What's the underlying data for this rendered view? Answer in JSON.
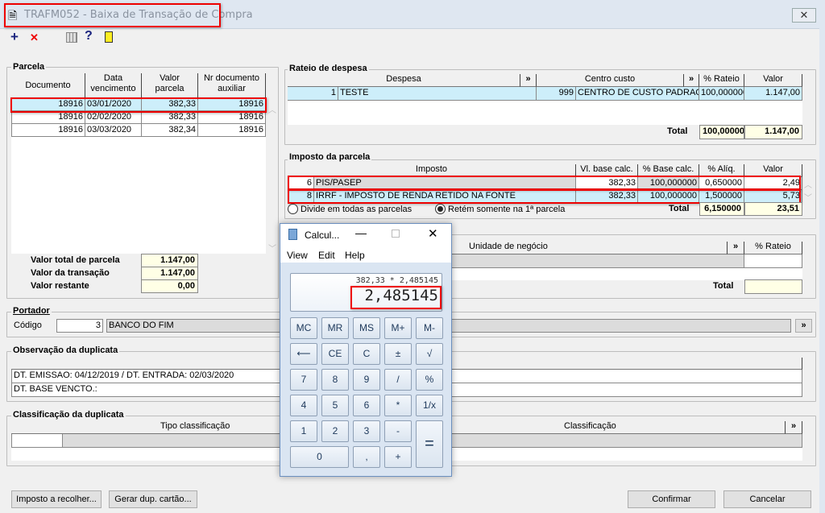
{
  "window": {
    "title": "TRAFM052 - Baixa de Transação de Compra",
    "close": "✕"
  },
  "toolbar": {
    "add": "+",
    "delete": "✕",
    "help": "?"
  },
  "parcela": {
    "label": "Parcela",
    "headers": [
      "Documento",
      "Data\nvencimento",
      "Valor\nparcela",
      "Nr documento\nauxiliar"
    ],
    "rows": [
      [
        "18916",
        "03/01/2020",
        "382,33",
        "18916"
      ],
      [
        "18916",
        "02/02/2020",
        "382,33",
        "18916"
      ],
      [
        "18916",
        "03/03/2020",
        "382,34",
        "18916"
      ]
    ],
    "totals": [
      {
        "label": "Valor total de parcela",
        "value": "1.147,00"
      },
      {
        "label": "Valor da transação",
        "value": "1.147,00"
      },
      {
        "label": "Valor restante",
        "value": "0,00"
      }
    ]
  },
  "rateio": {
    "label": "Rateio de despesa",
    "headers": [
      "Despesa",
      "»",
      "Centro custo",
      "»",
      "% Rateio",
      "Valor"
    ],
    "row": {
      "num": "1",
      "despesa": "TESTE",
      "cc_num": "999",
      "cc": "CENTRO DE CUSTO PADRAO",
      "rateio": "100,000000",
      "valor": "1.147,00"
    },
    "total_label": "Total",
    "total_rateio": "100,000000",
    "total_valor": "1.147,00"
  },
  "imposto": {
    "label": "Imposto da parcela",
    "headers": [
      "Imposto",
      "Vl. base calc.",
      "% Base calc.",
      "% Alíq.",
      "Valor"
    ],
    "rows": [
      {
        "num": "6",
        "name": "PIS/PASEP",
        "base": "382,33",
        "pbase": "100,000000",
        "aliq": "0,650000",
        "valor": "2,49"
      },
      {
        "num": "8",
        "name": "IRRF - IMPOSTO DE RENDA RETIDO NA FONTE",
        "base": "382,33",
        "pbase": "100,000000",
        "aliq": "1,500000",
        "valor": "5,73"
      }
    ],
    "radio1": "Divide em todas as parcelas",
    "radio2": "Retém somente na 1ª parcela",
    "radio_selected": "Retém somente na 1ª parcela",
    "total_label": "Total",
    "total_aliq": "6,150000",
    "total_valor": "23,51"
  },
  "unidade": {
    "headers": [
      "Unidade de negócio",
      "»",
      "% Rateio"
    ],
    "total_label": "Total"
  },
  "portador": {
    "label": "Portador",
    "codigo_label": "Código",
    "codigo": "3",
    "nome": "BANCO DO FIM",
    "lookup": "»"
  },
  "observacao": {
    "label": "Observação da duplicata",
    "lines": [
      "DT. EMISSAO: 04/12/2019 / DT. ENTRADA: 02/03/2020",
      "DT. BASE VENCTO.:"
    ]
  },
  "classificacao": {
    "label": "Classificação da duplicata",
    "headers": [
      "Tipo classificação",
      "Classificação",
      "»"
    ]
  },
  "buttons": {
    "imposto": "Imposto a recolher...",
    "gerar": "Gerar dup. cartão...",
    "confirmar": "Confirmar",
    "cancelar": "Cancelar"
  },
  "calculator": {
    "title": "Calcul...",
    "menu": [
      "View",
      "Edit",
      "Help"
    ],
    "expression": "382,33 * 2,485145",
    "display": "2,485145",
    "keys": [
      [
        "MC",
        "MR",
        "MS",
        "M+",
        "M-"
      ],
      [
        "⟵",
        "CE",
        "C",
        "±",
        "√"
      ],
      [
        "7",
        "8",
        "9",
        "/",
        "%"
      ],
      [
        "4",
        "5",
        "6",
        "*",
        "1/x"
      ],
      [
        "1",
        "2",
        "3",
        "-",
        "="
      ],
      [
        "0",
        ",",
        "+"
      ]
    ]
  }
}
